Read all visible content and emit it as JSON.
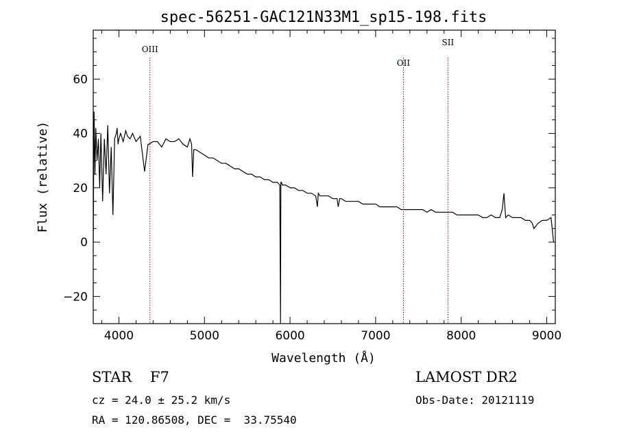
{
  "chart_data": {
    "type": "line",
    "title": "spec-56251-GAC121N33M1_sp15-198.fits",
    "xlabel": "Wavelength (Å)",
    "ylabel": "Flux (relative)",
    "xlim": [
      3700,
      9100
    ],
    "ylim": [
      -30,
      78
    ],
    "x_ticks": [
      4000,
      5000,
      6000,
      7000,
      8000,
      9000
    ],
    "y_ticks": [
      -20,
      0,
      20,
      40,
      60
    ],
    "grid": false,
    "series": [
      {
        "color": "#000000",
        "x": [
          3700,
          3710,
          3720,
          3730,
          3745,
          3760,
          3775,
          3790,
          3810,
          3830,
          3850,
          3870,
          3890,
          3910,
          3930,
          3950,
          3970,
          3980,
          3990,
          4000,
          4020,
          4050,
          4080,
          4100,
          4130,
          4160,
          4200,
          4250,
          4300,
          4340,
          4350,
          4400,
          4450,
          4500,
          4550,
          4600,
          4650,
          4700,
          4750,
          4800,
          4830,
          4850,
          4861,
          4875,
          4900,
          4950,
          5000,
          5050,
          5100,
          5150,
          5200,
          5250,
          5300,
          5350,
          5400,
          5450,
          5500,
          5550,
          5600,
          5650,
          5700,
          5750,
          5800,
          5850,
          5880,
          5889,
          5893,
          5900,
          5910,
          5950,
          6000,
          6050,
          6100,
          6150,
          6200,
          6250,
          6300,
          6320,
          6330,
          6350,
          6400,
          6450,
          6500,
          6550,
          6563,
          6580,
          6600,
          6650,
          6700,
          6750,
          6800,
          6850,
          6900,
          6950,
          7000,
          7050,
          7100,
          7150,
          7200,
          7250,
          7300,
          7350,
          7400,
          7450,
          7500,
          7550,
          7600,
          7650,
          7700,
          7750,
          7800,
          7850,
          7900,
          7950,
          8000,
          8050,
          8100,
          8150,
          8200,
          8250,
          8300,
          8350,
          8400,
          8450,
          8480,
          8500,
          8520,
          8550,
          8600,
          8650,
          8700,
          8750,
          8800,
          8830,
          8850,
          8900,
          8950,
          9000,
          9050,
          9080
        ],
        "y": [
          0,
          48,
          25,
          42,
          30,
          38,
          20,
          40,
          15,
          38,
          25,
          43,
          18,
          35,
          10,
          38,
          40,
          42,
          36,
          38,
          40,
          37,
          41,
          39,
          38,
          40,
          37,
          39,
          26,
          36,
          36,
          37,
          37,
          35,
          38,
          37,
          37,
          38,
          36,
          35,
          38,
          36,
          24,
          34,
          34,
          33,
          32,
          31,
          31,
          30,
          29,
          29,
          28,
          27,
          27,
          26,
          25,
          25,
          24,
          24,
          23,
          23,
          22,
          22,
          21,
          -30,
          22,
          22,
          21,
          21,
          20,
          20,
          19,
          19,
          18,
          18,
          17,
          13,
          18,
          17,
          17,
          17,
          16,
          16,
          13,
          16,
          16,
          15,
          15,
          15,
          15,
          14,
          14,
          14,
          14,
          13,
          13,
          13,
          13,
          13,
          12,
          12,
          12,
          12,
          12,
          12,
          11,
          12,
          11,
          11,
          11,
          11,
          11,
          10,
          10,
          10,
          10,
          10,
          10,
          9,
          9,
          10,
          9,
          9,
          12,
          18,
          9,
          10,
          9,
          9,
          9,
          8,
          8,
          7,
          5,
          7,
          8,
          8,
          9,
          0
        ]
      }
    ],
    "annotations": [
      {
        "label": "OIII",
        "x": 4363
      },
      {
        "label": "OII",
        "x": 7325
      },
      {
        "label": "SII",
        "x": 7845
      }
    ]
  },
  "info": {
    "left_line1": "STAR    F7",
    "left_line2": "cz = 24.0 ± 25.2 km/s",
    "left_line3": "RA = 120.86508, DEC =  33.75540",
    "right_line1": "LAMOST DR2",
    "right_line2": "Obs-Date: 20121119"
  }
}
